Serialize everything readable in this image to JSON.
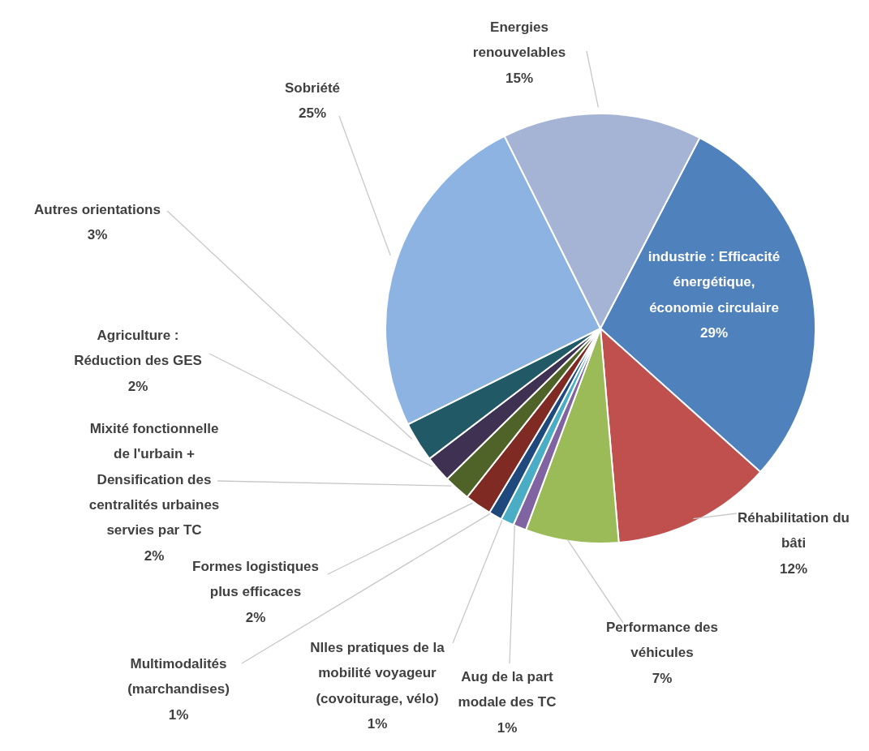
{
  "chart_data": {
    "type": "pie",
    "categories": [
      "industrie : Efficacité énergétique, économie circulaire",
      "Réhabilitation du bâti",
      "Performance des véhicules",
      "Aug de la part modale des TC",
      "Nlles pratiques de la mobilité voyageur (covoiturage, vélo)",
      "Multimodalités (marchandises)",
      "Formes logistiques plus efficaces",
      "Mixité fonctionnelle de l'urbain + Densification des centralités urbaines servies par TC",
      "Agriculture : Réduction des GES",
      "Autres orientations",
      "Sobriété",
      "Energies renouvelables"
    ],
    "values": [
      29,
      12,
      7,
      1,
      1,
      1,
      2,
      2,
      2,
      3,
      25,
      15
    ],
    "value_labels": [
      "29%",
      "12%",
      "7%",
      "1%",
      "1%",
      "1%",
      "2%",
      "2%",
      "2%",
      "3%",
      "25%",
      "15%"
    ],
    "colors": [
      "#4f81bd",
      "#c0504d",
      "#9bbb59",
      "#8064a2",
      "#4bacc6",
      "#1f497d",
      "#7f2a22",
      "#4f6228",
      "#3f3151",
      "#215967",
      "#8db3e2",
      "#a5b4d4"
    ]
  }
}
